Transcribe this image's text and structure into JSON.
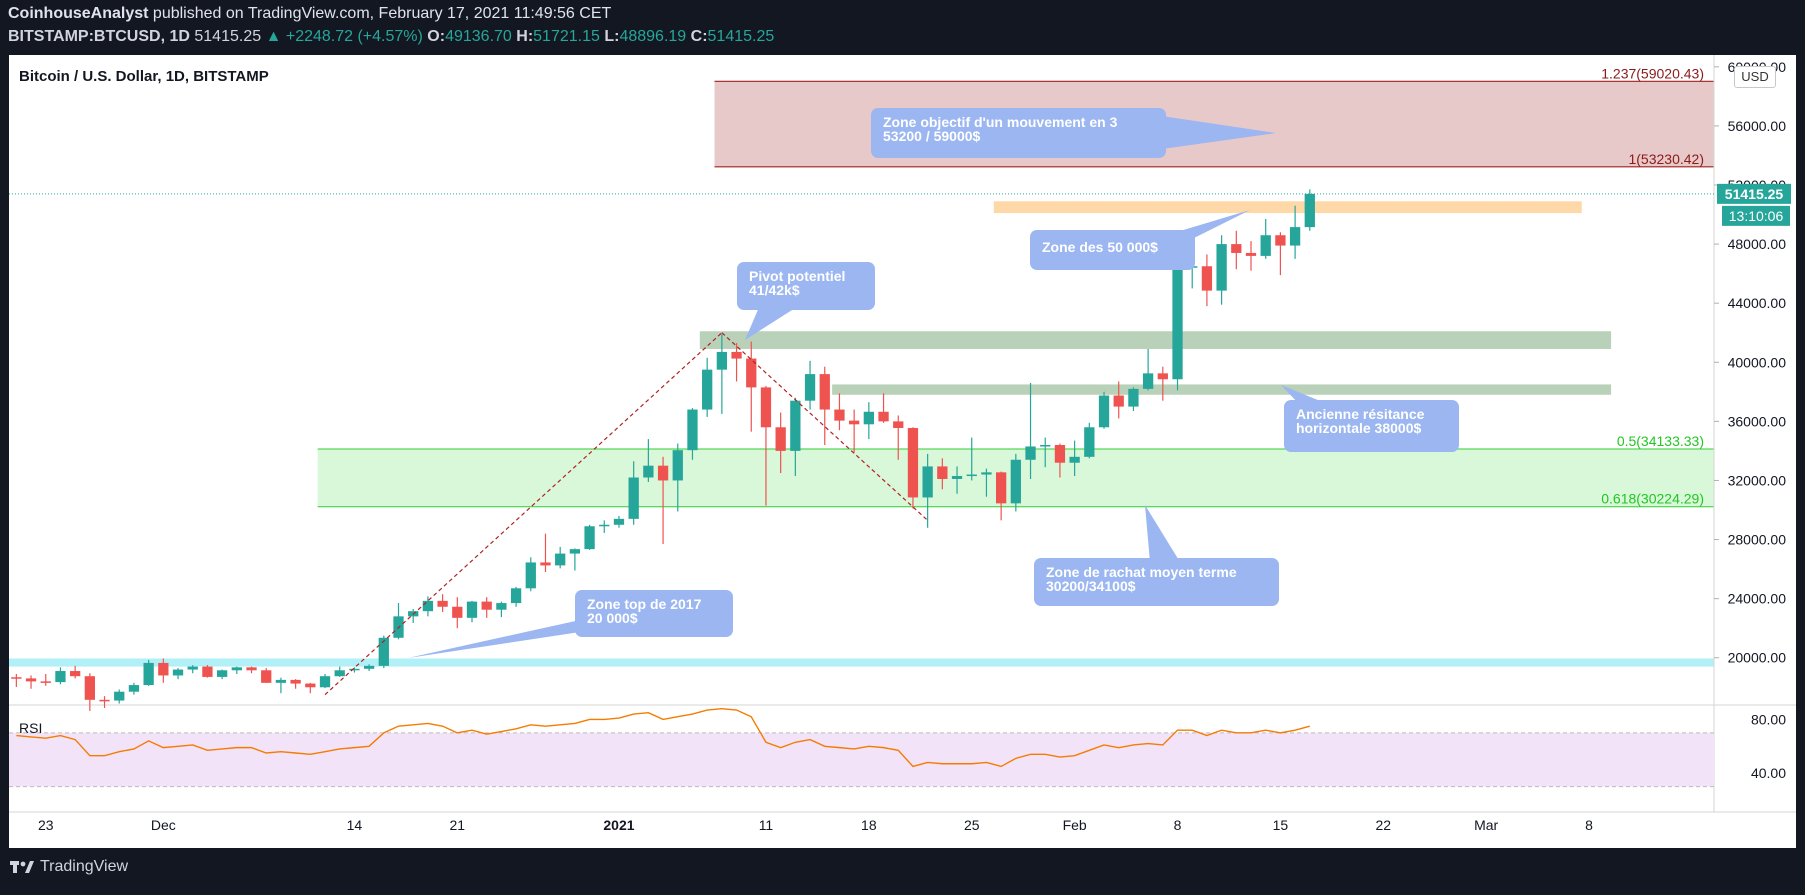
{
  "header": {
    "author": "CoinhouseAnalyst",
    "published": " published on TradingView.com, February 17, 2021 11:49:56 CET",
    "symbol": "BITSTAMP:BTCUSD, 1D",
    "last": "51415.25",
    "change": "▲ +2248.72 (+4.57%)",
    "o_label": "O:",
    "o": "49136.70",
    "h_label": "H:",
    "h": "51721.15",
    "l_label": "L:",
    "l": "48896.19",
    "c_label": "C:",
    "c": "51415.25"
  },
  "footer": {
    "brand": "TradingView"
  },
  "chart_data": {
    "type": "candlestick",
    "title": "Bitcoin / U.S. Dollar, 1D, BITSTAMP",
    "currency_button": "USD",
    "last_price_label": "51415.25",
    "countdown_label": "13:10:06",
    "y_ticks": [
      "60000.00",
      "56000.00",
      "52000.00",
      "48000.00",
      "44000.00",
      "40000.00",
      "36000.00",
      "32000.00",
      "28000.00",
      "24000.00",
      "20000.00"
    ],
    "y_tick_values": [
      60000,
      56000,
      52000,
      48000,
      44000,
      40000,
      36000,
      32000,
      28000,
      24000,
      20000
    ],
    "x_ticks": [
      "23",
      "Dec",
      "14",
      "21",
      "2021",
      "11",
      "18",
      "25",
      "Feb",
      "8",
      "15",
      "22",
      "Mar",
      "8"
    ],
    "x_tick_dates": [
      "2020-11-23",
      "2020-12-01",
      "2020-12-14",
      "2020-12-21",
      "2021-01-01",
      "2021-01-11",
      "2021-01-18",
      "2021-01-25",
      "2021-02-01",
      "2021-02-08",
      "2021-02-15",
      "2021-02-22",
      "2021-03-01",
      "2021-03-08"
    ],
    "ylim": [
      16800,
      60800
    ],
    "xlim": [
      "2020-11-21",
      "2021-03-16"
    ],
    "candles": [
      [
        "2020-11-21",
        18680,
        18900,
        18020,
        18600
      ],
      [
        "2020-11-22",
        18600,
        18800,
        17900,
        18400
      ],
      [
        "2020-11-23",
        18400,
        18900,
        18100,
        18350
      ],
      [
        "2020-11-24",
        18350,
        19350,
        18200,
        19100
      ],
      [
        "2020-11-25",
        19100,
        19450,
        18600,
        18750
      ],
      [
        "2020-11-26",
        18750,
        18950,
        16400,
        17150
      ],
      [
        "2020-11-27",
        17150,
        17400,
        16600,
        17100
      ],
      [
        "2020-11-28",
        17100,
        17850,
        16900,
        17700
      ],
      [
        "2020-11-29",
        17700,
        18300,
        17500,
        18150
      ],
      [
        "2020-11-30",
        18150,
        19850,
        18100,
        19650
      ],
      [
        "2020-12-01",
        19650,
        19950,
        18300,
        18800
      ],
      [
        "2020-12-02",
        18800,
        19300,
        18550,
        19200
      ],
      [
        "2020-12-03",
        19200,
        19500,
        18950,
        19400
      ],
      [
        "2020-12-04",
        19400,
        19500,
        18650,
        18700
      ],
      [
        "2020-12-05",
        18700,
        19200,
        18550,
        19150
      ],
      [
        "2020-12-06",
        19150,
        19400,
        18900,
        19350
      ],
      [
        "2020-12-07",
        19350,
        19400,
        18950,
        19150
      ],
      [
        "2020-12-08",
        19150,
        19300,
        18300,
        18300
      ],
      [
        "2020-12-09",
        18300,
        18650,
        17600,
        18500
      ],
      [
        "2020-12-10",
        18500,
        18550,
        17900,
        18250
      ],
      [
        "2020-12-11",
        18250,
        18300,
        17600,
        18000
      ],
      [
        "2020-12-12",
        18000,
        18900,
        17950,
        18750
      ],
      [
        "2020-12-13",
        18750,
        19400,
        18700,
        19150
      ],
      [
        "2020-12-14",
        19150,
        19350,
        19000,
        19250
      ],
      [
        "2020-12-15",
        19250,
        19550,
        19100,
        19450
      ],
      [
        "2020-12-16",
        19450,
        21500,
        19300,
        21350
      ],
      [
        "2020-12-17",
        21350,
        23700,
        21250,
        22800
      ],
      [
        "2020-12-18",
        22800,
        23300,
        22350,
        23150
      ],
      [
        "2020-12-19",
        23150,
        24150,
        22800,
        23850
      ],
      [
        "2020-12-20",
        23850,
        24300,
        23100,
        23450
      ],
      [
        "2020-12-21",
        23450,
        24100,
        22000,
        22700
      ],
      [
        "2020-12-22",
        22700,
        23850,
        22400,
        23800
      ],
      [
        "2020-12-23",
        23800,
        24100,
        22700,
        23250
      ],
      [
        "2020-12-24",
        23250,
        23800,
        22750,
        23700
      ],
      [
        "2020-12-25",
        23700,
        24800,
        23450,
        24700
      ],
      [
        "2020-12-26",
        24700,
        26800,
        24500,
        26450
      ],
      [
        "2020-12-27",
        26450,
        28400,
        25800,
        26250
      ],
      [
        "2020-12-28",
        26250,
        27500,
        26050,
        27050
      ],
      [
        "2020-12-29",
        27050,
        27400,
        25900,
        27350
      ],
      [
        "2020-12-30",
        27350,
        29000,
        27300,
        28900
      ],
      [
        "2020-12-31",
        28900,
        29300,
        28450,
        29000
      ],
      [
        "2021-01-01",
        29000,
        29600,
        28800,
        29400
      ],
      [
        "2021-01-02",
        29400,
        33300,
        29000,
        32200
      ],
      [
        "2021-01-03",
        32200,
        34800,
        31900,
        33000
      ],
      [
        "2021-01-04",
        33000,
        33600,
        27700,
        32000
      ],
      [
        "2021-01-05",
        32000,
        34500,
        29900,
        34050
      ],
      [
        "2021-01-06",
        34050,
        36900,
        33400,
        36800
      ],
      [
        "2021-01-07",
        36800,
        40300,
        36300,
        39500
      ],
      [
        "2021-01-08",
        39500,
        41900,
        36500,
        40700
      ],
      [
        "2021-01-09",
        40700,
        41300,
        38700,
        40250
      ],
      [
        "2021-01-10",
        40250,
        41400,
        35300,
        38300
      ],
      [
        "2021-01-11",
        38300,
        38400,
        30300,
        35600
      ],
      [
        "2021-01-12",
        35600,
        36600,
        32500,
        34000
      ],
      [
        "2021-01-13",
        34000,
        37600,
        32300,
        37400
      ],
      [
        "2021-01-14",
        37400,
        40100,
        36800,
        39200
      ],
      [
        "2021-01-15",
        39200,
        39700,
        34400,
        36800
      ],
      [
        "2021-01-16",
        36800,
        37900,
        35400,
        36050
      ],
      [
        "2021-01-17",
        36050,
        36800,
        33900,
        35800
      ],
      [
        "2021-01-18",
        35800,
        37300,
        34800,
        36650
      ],
      [
        "2021-01-19",
        36650,
        37900,
        35900,
        36000
      ],
      [
        "2021-01-20",
        36000,
        36400,
        33400,
        35550
      ],
      [
        "2021-01-21",
        35550,
        35600,
        30100,
        30850
      ],
      [
        "2021-01-22",
        30850,
        33800,
        28800,
        32950
      ],
      [
        "2021-01-23",
        32950,
        33500,
        31400,
        32100
      ],
      [
        "2021-01-24",
        32100,
        32950,
        31100,
        32300
      ],
      [
        "2021-01-25",
        32300,
        34900,
        32000,
        32400
      ],
      [
        "2021-01-26",
        32400,
        32800,
        30900,
        32550
      ],
      [
        "2021-01-27",
        32550,
        32600,
        29300,
        30450
      ],
      [
        "2021-01-28",
        30450,
        33800,
        29900,
        33400
      ],
      [
        "2021-01-29",
        33400,
        38600,
        32100,
        34300
      ],
      [
        "2021-01-30",
        34300,
        34900,
        32900,
        34400
      ],
      [
        "2021-01-31",
        34400,
        34500,
        32200,
        33200
      ],
      [
        "2021-02-01",
        33200,
        34700,
        32300,
        33600
      ],
      [
        "2021-02-02",
        33600,
        35900,
        33500,
        35600
      ],
      [
        "2021-02-03",
        35600,
        38000,
        35500,
        37750
      ],
      [
        "2021-02-04",
        37750,
        38700,
        36200,
        37000
      ],
      [
        "2021-02-05",
        37000,
        38300,
        36700,
        38200
      ],
      [
        "2021-02-06",
        38200,
        40900,
        38100,
        39250
      ],
      [
        "2021-02-07",
        39250,
        39700,
        37400,
        38850
      ],
      [
        "2021-02-08",
        38850,
        46700,
        38100,
        46450
      ],
      [
        "2021-02-09",
        46450,
        48200,
        45000,
        46500
      ],
      [
        "2021-02-10",
        46500,
        47300,
        43800,
        44850
      ],
      [
        "2021-02-11",
        44850,
        48600,
        43900,
        48000
      ],
      [
        "2021-02-12",
        48000,
        48900,
        46300,
        47400
      ],
      [
        "2021-02-13",
        47400,
        48200,
        46200,
        47200
      ],
      [
        "2021-02-14",
        47200,
        49700,
        47000,
        48600
      ],
      [
        "2021-02-15",
        48600,
        48800,
        45900,
        47900
      ],
      [
        "2021-02-16",
        47900,
        50600,
        47000,
        49150
      ],
      [
        "2021-02-17",
        49150,
        51700,
        48900,
        51400
      ]
    ],
    "rsi": {
      "label": "RSI",
      "ticks": [
        "80.00",
        "40.00"
      ],
      "tick_values": [
        80,
        40
      ],
      "upper_band": 70,
      "lower band": 30,
      "values": [
        [
          "2020-11-21",
          68
        ],
        [
          "2020-11-22",
          67
        ],
        [
          "2020-11-23",
          66
        ],
        [
          "2020-11-24",
          68
        ],
        [
          "2020-11-25",
          65
        ],
        [
          "2020-11-26",
          53
        ],
        [
          "2020-11-27",
          53
        ],
        [
          "2020-11-28",
          56
        ],
        [
          "2020-11-29",
          58
        ],
        [
          "2020-11-30",
          64
        ],
        [
          "2020-12-01",
          59
        ],
        [
          "2020-12-02",
          60
        ],
        [
          "2020-12-03",
          61
        ],
        [
          "2020-12-04",
          57
        ],
        [
          "2020-12-05",
          58
        ],
        [
          "2020-12-06",
          59
        ],
        [
          "2020-12-07",
          59
        ],
        [
          "2020-12-08",
          55
        ],
        [
          "2020-12-09",
          56
        ],
        [
          "2020-12-10",
          55
        ],
        [
          "2020-12-11",
          54
        ],
        [
          "2020-12-12",
          56
        ],
        [
          "2020-12-13",
          58
        ],
        [
          "2020-12-14",
          59
        ],
        [
          "2020-12-15",
          60
        ],
        [
          "2020-12-16",
          70
        ],
        [
          "2020-12-17",
          75
        ],
        [
          "2020-12-18",
          76
        ],
        [
          "2020-12-19",
          77
        ],
        [
          "2020-12-20",
          75
        ],
        [
          "2020-12-21",
          70
        ],
        [
          "2020-12-22",
          72
        ],
        [
          "2020-12-23",
          69
        ],
        [
          "2020-12-24",
          71
        ],
        [
          "2020-12-25",
          73
        ],
        [
          "2020-12-26",
          76
        ],
        [
          "2020-12-27",
          75
        ],
        [
          "2020-12-28",
          76
        ],
        [
          "2020-12-29",
          77
        ],
        [
          "2020-12-30",
          80
        ],
        [
          "2020-12-31",
          80
        ],
        [
          "2021-01-01",
          81
        ],
        [
          "2021-01-02",
          84
        ],
        [
          "2021-01-03",
          85
        ],
        [
          "2021-01-04",
          80
        ],
        [
          "2021-01-05",
          82
        ],
        [
          "2021-01-06",
          84
        ],
        [
          "2021-01-07",
          87
        ],
        [
          "2021-01-08",
          88
        ],
        [
          "2021-01-09",
          87
        ],
        [
          "2021-01-10",
          82
        ],
        [
          "2021-01-11",
          63
        ],
        [
          "2021-01-12",
          59
        ],
        [
          "2021-01-13",
          63
        ],
        [
          "2021-01-14",
          65
        ],
        [
          "2021-01-15",
          60
        ],
        [
          "2021-01-16",
          59
        ],
        [
          "2021-01-17",
          58
        ],
        [
          "2021-01-18",
          60
        ],
        [
          "2021-01-19",
          59
        ],
        [
          "2021-01-20",
          57
        ],
        [
          "2021-01-21",
          45
        ],
        [
          "2021-01-22",
          48
        ],
        [
          "2021-01-23",
          47
        ],
        [
          "2021-01-24",
          47
        ],
        [
          "2021-01-25",
          47
        ],
        [
          "2021-01-26",
          48
        ],
        [
          "2021-01-27",
          45
        ],
        [
          "2021-01-28",
          51
        ],
        [
          "2021-01-29",
          54
        ],
        [
          "2021-01-30",
          54
        ],
        [
          "2021-01-31",
          52
        ],
        [
          "2021-02-01",
          53
        ],
        [
          "2021-02-02",
          57
        ],
        [
          "2021-02-03",
          61
        ],
        [
          "2021-02-04",
          59
        ],
        [
          "2021-02-05",
          61
        ],
        [
          "2021-02-06",
          62
        ],
        [
          "2021-02-07",
          61
        ],
        [
          "2021-02-08",
          72
        ],
        [
          "2021-02-09",
          72
        ],
        [
          "2021-02-10",
          68
        ],
        [
          "2021-02-11",
          72
        ],
        [
          "2021-02-12",
          70
        ],
        [
          "2021-02-13",
          70
        ],
        [
          "2021-02-14",
          72
        ],
        [
          "2021-02-15",
          70
        ],
        [
          "2021-02-16",
          72
        ],
        [
          "2021-02-17",
          75
        ]
      ]
    },
    "zones": [
      {
        "kind": "target",
        "from": "2021-01-08",
        "to": "2021-03-16",
        "low": 53230,
        "high": 59020,
        "color": "#e8c9c9"
      },
      {
        "kind": "resistance",
        "from": "2021-01-27",
        "to": "2021-03-07",
        "low": 50100,
        "high": 50900,
        "color": "#ffd8a8"
      },
      {
        "kind": "pivot",
        "from": "2021-01-07",
        "to": "2021-03-09",
        "low": 40900,
        "high": 42100,
        "color": "#b8d1b8"
      },
      {
        "kind": "old-resistance",
        "from": "2021-01-16",
        "to": "2021-03-09",
        "low": 37800,
        "high": 38500,
        "color": "#b8d1b8"
      },
      {
        "kind": "buy",
        "from": "2020-12-12",
        "to": "2021-03-16",
        "low": 30224,
        "high": 34133,
        "color": "#d9f7d9"
      },
      {
        "kind": "top2017",
        "from": "2020-11-21",
        "to": "2021-03-16",
        "low": 19400,
        "high": 19950,
        "color": "#b2f0f7"
      }
    ],
    "fib_labels": [
      {
        "text": "1.237(59020.43)",
        "value": 59020,
        "color": "#8b1a1a"
      },
      {
        "text": "1(53230.42)",
        "value": 53230,
        "color": "#8b1a1a"
      },
      {
        "text": "0.5(34133.33)",
        "value": 34133,
        "color": "#22c722"
      },
      {
        "text": "0.618(30224.29)",
        "value": 30224,
        "color": "#22c722"
      }
    ],
    "annotations": [
      {
        "id": "target",
        "lines": [
          "Zone objectif d'un mouvement en 3",
          "53200 / 59000$"
        ]
      },
      {
        "id": "zone50k",
        "lines": [
          "Zone des 50 000$"
        ]
      },
      {
        "id": "pivot",
        "lines": [
          "Pivot potentiel",
          "41/42k$"
        ]
      },
      {
        "id": "oldres",
        "lines": [
          "Ancienne résitance",
          "horizontale 38000$"
        ]
      },
      {
        "id": "buyzone",
        "lines": [
          "Zone de rachat moyen terme",
          "30200/34100$"
        ]
      },
      {
        "id": "top2017",
        "lines": [
          "Zone top de 2017",
          "20 000$"
        ]
      }
    ],
    "trendlines": [
      {
        "from": [
          "2020-12-12",
          17500
        ],
        "to": [
          "2021-01-08",
          42000
        ]
      },
      {
        "from": [
          "2021-01-08",
          42000
        ],
        "to": [
          "2021-01-22",
          29300
        ]
      }
    ],
    "colors": {
      "up": "#26a69a",
      "down": "#ef5350",
      "rsi_line": "#f57c00",
      "rsi_band": "#f3e3f9",
      "callout": "#9bb6f0"
    }
  }
}
